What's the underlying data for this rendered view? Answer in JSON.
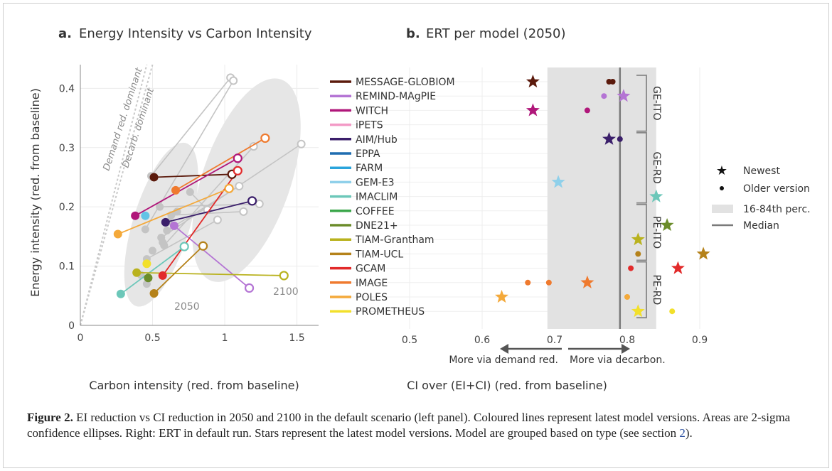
{
  "panel_a": {
    "letter": "a.",
    "title": "Energy Intensity vs Carbon Intensity",
    "ylabel": "Energy intensity (red. from baseline)",
    "xlabel": "Carbon intensity (red. from baseline)",
    "demand_label": "Demand red. dominant",
    "decarb_label": "Decarb. dominant",
    "ellipse_2050_label": "2050",
    "ellipse_2100_label": "2100"
  },
  "panel_b": {
    "letter": "b.",
    "title": "ERT per model (2050)",
    "xlabel": "CI over (EI+CI) (red. from baseline)",
    "arrow_left_label": "More via demand red.",
    "arrow_right_label": "More via decarbon.",
    "groups": [
      {
        "label": "GE-ITO",
        "from": 0,
        "to": 3
      },
      {
        "label": "GE-RD",
        "from": 4,
        "to": 8
      },
      {
        "label": "PE-ITO",
        "from": 9,
        "to": 12
      },
      {
        "label": "PE-RD",
        "from": 13,
        "to": 16
      }
    ]
  },
  "legend": {
    "newest": "Newest",
    "older": "Older version",
    "band": "16-84th perc.",
    "median": "Median"
  },
  "caption": {
    "label": "Figure 2.",
    "text": "EI reduction vs CI reduction in 2050 and 2100 in the default scenario (left panel). Coloured lines represent latest model versions. Areas are 2-sigma confidence ellipses. Right: ERT in default run. Stars represent the latest model versions. Model are grouped based on type (see section ",
    "ref": "2",
    "end": ")."
  },
  "colors": {
    "band": "#e2e2e2",
    "median": "#7a7a7a",
    "grey_points": "#c4c4c4",
    "ellipse": "#e6e6e6"
  },
  "chart_data": [
    {
      "type": "scatter",
      "title": "Energy Intensity vs Carbon Intensity",
      "xlabel": "Carbon intensity (red. from baseline)",
      "ylabel": "Energy intensity (red. from baseline)",
      "xlim": [
        0,
        1.65
      ],
      "ylim": [
        0,
        0.44
      ],
      "xticks": [
        0,
        0.5,
        1,
        1.5
      ],
      "yticks": [
        0,
        0.1,
        0.2,
        0.3,
        0.4
      ],
      "grid": true,
      "latest_model_pairs": [
        {
          "model": "MESSAGE-GLOBIOM",
          "color": "#5b1a0c",
          "p2050": [
            0.51,
            0.25
          ],
          "p2100": [
            1.05,
            0.255
          ]
        },
        {
          "model": "REMIND-MAgPIE",
          "color": "#b474d4",
          "p2050": [
            0.65,
            0.168
          ],
          "p2100": [
            1.17,
            0.063
          ]
        },
        {
          "model": "WITCH",
          "color": "#b0177a",
          "p2050": [
            0.38,
            0.185
          ],
          "p2100": [
            1.09,
            0.282
          ]
        },
        {
          "model": "AIM/Hub",
          "color": "#3b1f6b",
          "p2050": [
            0.59,
            0.174
          ],
          "p2100": [
            1.19,
            0.21
          ]
        },
        {
          "model": "GEM-E3",
          "color": "#62c3e6",
          "p2050": [
            0.45,
            0.185
          ],
          "p2100": null
        },
        {
          "model": "IMACLIM",
          "color": "#6cc7b9",
          "p2050": [
            0.28,
            0.053
          ],
          "p2100": [
            0.72,
            0.133
          ]
        },
        {
          "model": "DNE21+",
          "color": "#6b8c2a",
          "p2050": [
            0.47,
            0.08
          ],
          "p2100": null
        },
        {
          "model": "TIAM-Grantham",
          "color": "#b9b21e",
          "p2050": [
            0.39,
            0.089
          ],
          "p2100": [
            1.41,
            0.084
          ]
        },
        {
          "model": "TIAM-UCL",
          "color": "#b5821a",
          "p2050": [
            0.51,
            0.054
          ],
          "p2100": [
            0.85,
            0.134
          ]
        },
        {
          "model": "GCAM",
          "color": "#e22a2a",
          "p2050": [
            0.57,
            0.084
          ],
          "p2100": [
            1.09,
            0.261
          ]
        },
        {
          "model": "IMAGE",
          "color": "#ef7a2e",
          "p2050": [
            0.66,
            0.228
          ],
          "p2100": [
            1.28,
            0.316
          ]
        },
        {
          "model": "POLES",
          "color": "#f4a93a",
          "p2050": [
            0.26,
            0.154
          ],
          "p2100": [
            1.03,
            0.231
          ]
        },
        {
          "model": "PROMETHEUS",
          "color": "#f2e02b",
          "p2050": [
            0.46,
            0.104
          ],
          "p2100": null
        }
      ],
      "older_versions_2050": [
        [
          0.49,
          0.252
        ],
        [
          0.45,
          0.162
        ],
        [
          0.56,
          0.148
        ],
        [
          0.58,
          0.135
        ],
        [
          0.6,
          0.16
        ],
        [
          0.63,
          0.186
        ],
        [
          0.46,
          0.112
        ],
        [
          0.55,
          0.2
        ],
        [
          0.76,
          0.225
        ],
        [
          0.46,
          0.07
        ],
        [
          0.61,
          0.175
        ],
        [
          0.57,
          0.14
        ],
        [
          0.42,
          0.085
        ],
        [
          0.67,
          0.192
        ],
        [
          0.5,
          0.126
        ]
      ],
      "older_versions_2100": [
        [
          1.04,
          0.418
        ],
        [
          1.06,
          0.413
        ],
        [
          1.53,
          0.306
        ],
        [
          1.2,
          0.302
        ],
        [
          1.1,
          0.235
        ],
        [
          1.13,
          0.192
        ],
        [
          0.95,
          0.178
        ],
        [
          1.24,
          0.205
        ],
        [
          0.88,
          0.195
        ]
      ],
      "annotations": [
        "Demand red. dominant",
        "Decarb. dominant",
        "2050",
        "2100"
      ]
    },
    {
      "type": "scatter",
      "title": "ERT per model (2050)",
      "xlabel": "CI over (EI+CI) (red. from baseline)",
      "xlim": [
        0.45,
        0.93
      ],
      "xticks": [
        0.5,
        0.6,
        0.7,
        0.8,
        0.9
      ],
      "band": [
        0.69,
        0.84
      ],
      "median": 0.79,
      "categories": [
        "MESSAGE-GLOBIOM",
        "REMIND-MAgPIE",
        "WITCH",
        "iPETS",
        "AIM/Hub",
        "EPPA",
        "FARM",
        "GEM-E3",
        "IMACLIM",
        "COFFEE",
        "DNE21+",
        "TIAM-Grantham",
        "TIAM-UCL",
        "GCAM",
        "IMAGE",
        "POLES",
        "PROMETHEUS"
      ],
      "series": [
        {
          "name": "Newest",
          "values": [
            0.67,
            0.795,
            0.67,
            null,
            0.775,
            null,
            null,
            0.705,
            0.84,
            null,
            0.855,
            0.815,
            0.905,
            0.87,
            0.745,
            0.627,
            0.815
          ]
        },
        {
          "name": "Older version",
          "values": [
            [
              0.775,
              0.78
            ],
            [
              0.768
            ],
            [
              0.745
            ],
            [],
            [
              0.79
            ],
            [],
            [],
            [],
            [],
            [],
            [],
            [],
            [
              0.815
            ],
            [
              0.805
            ],
            [
              0.663,
              0.692
            ],
            [
              0.8
            ],
            [
              0.862
            ]
          ]
        }
      ],
      "model_colors": [
        "#5b1a0c",
        "#b474d4",
        "#b0177a",
        "#f39ac6",
        "#3b1f6b",
        "#1f6db0",
        "#2aa4dc",
        "#8fd0ea",
        "#6cc7b9",
        "#3aa64a",
        "#6b8c2a",
        "#b9b21e",
        "#b5821a",
        "#e22a2a",
        "#ef7a2e",
        "#f4a93a",
        "#f2e02b"
      ]
    }
  ]
}
